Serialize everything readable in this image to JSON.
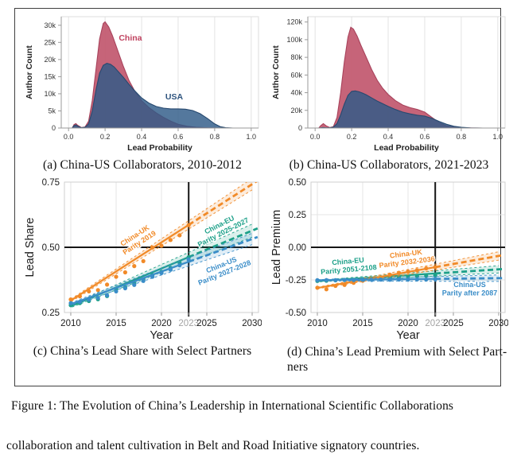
{
  "figure": {
    "caption_line1": "Figure 1: The Evolution of China’s Leadership in International Scientific Collaborations",
    "caption_line2": "collaboration and talent cultivation in Belt and Road Initiative signatory countries."
  },
  "panels": {
    "a_caption": "(a) China-US Collaborators, 2010-2012",
    "b_caption": "(b) China-US Collaborators, 2021-2023",
    "c_caption": "(c) China’s Lead Share with Select Partners",
    "d_caption_line1": "(d) China’s Lead Premium with Select Part-",
    "d_caption_line2": "ners"
  },
  "colors": {
    "china_red": "#c2586f",
    "usa_blue": "#2e5a88",
    "orange": "#f18a28",
    "teal": "#1da089",
    "blue": "#3a8dc8",
    "grid": "#e4e4e4",
    "axis": "#9a9a9a",
    "ref_line": "#151515",
    "tick_text": "#333333",
    "muted_tick": "#a3a3a3"
  },
  "chart_data": [
    {
      "id": "a",
      "type": "density",
      "title": "China-US Collaborators, 2010-2012",
      "xlabel": "Lead Probability",
      "ylabel": "Author Count",
      "xlim": [
        0.0,
        1.0
      ],
      "ymax": 32500,
      "xticks": [
        0,
        0.2,
        0.4,
        0.6,
        0.8,
        1.0
      ],
      "xtick_labels": [
        "0.0",
        "0.2",
        "0.4",
        "0.6",
        "0.8",
        "1.0"
      ],
      "yticks": [
        0,
        5000,
        10000,
        15000,
        20000,
        25000,
        30000
      ],
      "ytick_labels": [
        "0",
        "5k",
        "10k",
        "15k",
        "20k",
        "25k",
        "30k"
      ],
      "series": [
        {
          "name": "China",
          "color": "#c2586f",
          "stroke": "#a8435c",
          "opacity": 0.93,
          "label": "China",
          "label_color": "#c0425f",
          "label_pos": [
            0.275,
            25500
          ],
          "points": [
            [
              0.02,
              0
            ],
            [
              0.03,
              1000
            ],
            [
              0.04,
              1300
            ],
            [
              0.05,
              800
            ],
            [
              0.07,
              150
            ],
            [
              0.09,
              300
            ],
            [
              0.11,
              2000
            ],
            [
              0.13,
              8000
            ],
            [
              0.15,
              17000
            ],
            [
              0.17,
              26000
            ],
            [
              0.19,
              30500
            ],
            [
              0.2,
              31000
            ],
            [
              0.22,
              29500
            ],
            [
              0.24,
              27000
            ],
            [
              0.26,
              24000
            ],
            [
              0.28,
              21000
            ],
            [
              0.3,
              18000
            ],
            [
              0.33,
              14000
            ],
            [
              0.36,
              11000
            ],
            [
              0.4,
              8000
            ],
            [
              0.44,
              6000
            ],
            [
              0.48,
              4400
            ],
            [
              0.52,
              3100
            ],
            [
              0.56,
              2000
            ],
            [
              0.6,
              1100
            ],
            [
              0.65,
              500
            ],
            [
              0.7,
              200
            ],
            [
              0.76,
              70
            ],
            [
              0.82,
              20
            ],
            [
              0.9,
              0
            ],
            [
              0.97,
              0
            ]
          ]
        },
        {
          "name": "USA",
          "color": "#2e5a88",
          "stroke": "#27496f",
          "opacity": 0.82,
          "label": "USA",
          "label_color": "#2e547e",
          "label_pos": [
            0.53,
            8300
          ],
          "points": [
            [
              0.02,
              0
            ],
            [
              0.03,
              700
            ],
            [
              0.04,
              900
            ],
            [
              0.05,
              550
            ],
            [
              0.07,
              100
            ],
            [
              0.09,
              200
            ],
            [
              0.11,
              1200
            ],
            [
              0.13,
              5000
            ],
            [
              0.15,
              11000
            ],
            [
              0.17,
              16000
            ],
            [
              0.19,
              18300
            ],
            [
              0.21,
              18900
            ],
            [
              0.23,
              18600
            ],
            [
              0.25,
              17800
            ],
            [
              0.27,
              16600
            ],
            [
              0.3,
              14800
            ],
            [
              0.33,
              12800
            ],
            [
              0.36,
              11000
            ],
            [
              0.4,
              8800
            ],
            [
              0.44,
              7300
            ],
            [
              0.48,
              6300
            ],
            [
              0.52,
              5800
            ],
            [
              0.56,
              5600
            ],
            [
              0.6,
              5600
            ],
            [
              0.64,
              5500
            ],
            [
              0.68,
              5100
            ],
            [
              0.72,
              4200
            ],
            [
              0.76,
              2800
            ],
            [
              0.8,
              1200
            ],
            [
              0.83,
              400
            ],
            [
              0.86,
              100
            ],
            [
              0.9,
              0
            ],
            [
              0.97,
              0
            ]
          ]
        }
      ]
    },
    {
      "id": "b",
      "type": "density",
      "title": "China-US Collaborators, 2021-2023",
      "xlabel": "Lead Probability",
      "ylabel": "Author Count",
      "xlim": [
        0.0,
        1.0
      ],
      "ymax": 126000,
      "xticks": [
        0,
        0.2,
        0.4,
        0.6,
        0.8,
        1.0
      ],
      "xtick_labels": [
        "0.0",
        "0.2",
        "0.4",
        "0.6",
        "0.8",
        "1.0"
      ],
      "yticks": [
        0,
        20000,
        40000,
        60000,
        80000,
        100000,
        120000
      ],
      "ytick_labels": [
        "0",
        "20k",
        "40k",
        "60k",
        "80k",
        "100k",
        "120k"
      ],
      "series": [
        {
          "name": "China",
          "color": "#c2586f",
          "stroke": "#a8435c",
          "opacity": 0.93,
          "label": null,
          "label_color": "#c0425f",
          "label_pos": null,
          "points": [
            [
              0.02,
              0
            ],
            [
              0.03,
              2500
            ],
            [
              0.045,
              5000
            ],
            [
              0.06,
              2500
            ],
            [
              0.08,
              500
            ],
            [
              0.1,
              1500
            ],
            [
              0.12,
              12000
            ],
            [
              0.14,
              40000
            ],
            [
              0.16,
              75000
            ],
            [
              0.18,
              103000
            ],
            [
              0.195,
              114000
            ],
            [
              0.21,
              112000
            ],
            [
              0.23,
              104000
            ],
            [
              0.25,
              94000
            ],
            [
              0.28,
              80000
            ],
            [
              0.31,
              66000
            ],
            [
              0.34,
              54000
            ],
            [
              0.37,
              45000
            ],
            [
              0.4,
              38000
            ],
            [
              0.44,
              31000
            ],
            [
              0.48,
              26000
            ],
            [
              0.52,
              23000
            ],
            [
              0.56,
              21000
            ],
            [
              0.6,
              18000
            ],
            [
              0.64,
              12000
            ],
            [
              0.68,
              6000
            ],
            [
              0.72,
              2500
            ],
            [
              0.76,
              1000
            ],
            [
              0.8,
              400
            ],
            [
              0.86,
              100
            ],
            [
              0.92,
              0
            ],
            [
              0.97,
              0
            ]
          ]
        },
        {
          "name": "USA",
          "color": "#2e5a88",
          "stroke": "#27496f",
          "opacity": 0.82,
          "label": null,
          "label_color": "#2e547e",
          "label_pos": null,
          "points": [
            [
              0.02,
              0
            ],
            [
              0.04,
              500
            ],
            [
              0.06,
              300
            ],
            [
              0.08,
              300
            ],
            [
              0.1,
              1000
            ],
            [
              0.12,
              5000
            ],
            [
              0.14,
              15000
            ],
            [
              0.16,
              27000
            ],
            [
              0.18,
              37000
            ],
            [
              0.2,
              41500
            ],
            [
              0.22,
              42000
            ],
            [
              0.24,
              41000
            ],
            [
              0.26,
              39500
            ],
            [
              0.28,
              37500
            ],
            [
              0.31,
              34000
            ],
            [
              0.34,
              30500
            ],
            [
              0.37,
              27500
            ],
            [
              0.4,
              24500
            ],
            [
              0.44,
              21000
            ],
            [
              0.48,
              18000
            ],
            [
              0.52,
              16000
            ],
            [
              0.56,
              14500
            ],
            [
              0.6,
              13500
            ],
            [
              0.64,
              11000
            ],
            [
              0.68,
              7500
            ],
            [
              0.72,
              4200
            ],
            [
              0.76,
              2000
            ],
            [
              0.8,
              800
            ],
            [
              0.85,
              200
            ],
            [
              0.92,
              0
            ],
            [
              0.97,
              0
            ]
          ]
        }
      ]
    },
    {
      "id": "c",
      "type": "scatter",
      "title": "China’s Lead Share with Select Partners",
      "xlabel": "Year",
      "ylabel": "Lead Share",
      "xlim": [
        2009.3,
        2030.7
      ],
      "ylim": [
        0.25,
        0.75
      ],
      "xticks": [
        {
          "v": 2010,
          "label": "2010"
        },
        {
          "v": 2015,
          "label": "2015"
        },
        {
          "v": 2020,
          "label": "2020"
        },
        {
          "v": 2023,
          "label": "2023",
          "muted": true
        },
        {
          "v": 2025,
          "label": "2025"
        },
        {
          "v": 2030,
          "label": "2030"
        }
      ],
      "yticks": [
        0.25,
        0.5,
        0.75
      ],
      "ytick_labels": [
        "0.25",
        "0.50",
        "0.75"
      ],
      "hline": 0.5,
      "vline": 2023,
      "years": [
        2010,
        2011,
        2012,
        2013,
        2014,
        2015,
        2016,
        2017,
        2018,
        2019,
        2020,
        2021,
        2022,
        2023
      ],
      "series": [
        {
          "name": "China-UK",
          "color": "#f18a28",
          "values": [
            0.3,
            0.312,
            0.331,
            0.336,
            0.357,
            0.387,
            0.404,
            0.428,
            0.447,
            0.499,
            0.506,
            0.528,
            0.546,
            0.585
          ],
          "fit": {
            "b0": 0.296,
            "m": 0.0223
          },
          "band": [
            0.005,
            0.022
          ],
          "annotation": [
            "China-UK",
            "Parity 2019"
          ],
          "ann": {
            "x": 2017.2,
            "y": 0.537,
            "rot": -33
          }
        },
        {
          "name": "China-EU",
          "color": "#1da089",
          "values": [
            0.278,
            0.286,
            0.294,
            0.301,
            0.313,
            0.339,
            0.346,
            0.361,
            0.376,
            0.394,
            0.406,
            0.421,
            0.441,
            0.462
          ],
          "fit": {
            "b0": 0.274,
            "m": 0.0145
          },
          "band": [
            0.005,
            0.025
          ],
          "annotation": [
            "China-EU",
            "Parity 2025-2027"
          ],
          "ann": {
            "x": 2026.5,
            "y": 0.578,
            "rot": -27
          }
        },
        {
          "name": "China-US",
          "color": "#3a8dc8",
          "values": [
            0.286,
            0.291,
            0.299,
            0.306,
            0.316,
            0.331,
            0.343,
            0.356,
            0.371,
            0.387,
            0.401,
            0.414,
            0.431,
            0.452
          ],
          "fit": {
            "b0": 0.282,
            "m": 0.0125
          },
          "band": [
            0.005,
            0.022
          ],
          "annotation": [
            "China-US",
            "Parity 2027-2028"
          ],
          "ann": {
            "x": 2026.7,
            "y": 0.424,
            "rot": -22
          }
        }
      ]
    },
    {
      "id": "d",
      "type": "scatter",
      "title": "China’s Lead Premium with Select Partners",
      "xlabel": "Year",
      "ylabel": "Lead Premium",
      "xlim": [
        2009.3,
        2030.7
      ],
      "ylim": [
        -0.5,
        0.5
      ],
      "xticks": [
        {
          "v": 2010,
          "label": "2010"
        },
        {
          "v": 2015,
          "label": "2015"
        },
        {
          "v": 2020,
          "label": "2020"
        },
        {
          "v": 2023,
          "label": "2023",
          "muted": true
        },
        {
          "v": 2025,
          "label": "2025"
        },
        {
          "v": 2030,
          "label": "2030"
        }
      ],
      "yticks": [
        -0.5,
        -0.25,
        0,
        0.25,
        0.5
      ],
      "ytick_labels": [
        "-0.50",
        "-0.25",
        "0.00",
        "0.25",
        "0.50"
      ],
      "hline": 0,
      "vline": 2023,
      "years": [
        2010,
        2011,
        2012,
        2013,
        2014,
        2015,
        2016,
        2017,
        2018,
        2019,
        2020,
        2021,
        2022,
        2023
      ],
      "series": [
        {
          "name": "China-EU",
          "color": "#1da089",
          "values": [
            -0.258,
            -0.256,
            -0.253,
            -0.251,
            -0.249,
            -0.246,
            -0.241,
            -0.238,
            -0.233,
            -0.229,
            -0.226,
            -0.223,
            -0.219,
            -0.215
          ],
          "fit": {
            "b0": -0.259,
            "m": 0.0045
          },
          "band": [
            0.006,
            0.028
          ],
          "annotation": [
            "China-EU",
            "Parity 2051-2108"
          ],
          "ann": {
            "x": 2013.4,
            "y": -0.125,
            "rot": -5
          }
        },
        {
          "name": "China-UK",
          "color": "#f18a28",
          "values": [
            -0.31,
            -0.322,
            -0.296,
            -0.288,
            -0.272,
            -0.256,
            -0.246,
            -0.232,
            -0.21,
            -0.196,
            -0.186,
            -0.176,
            -0.162,
            -0.152
          ],
          "fit": {
            "b0": -0.312,
            "m": 0.0123
          },
          "band": [
            0.006,
            0.032
          ],
          "annotation": [
            "China-UK",
            "Parity 2032-2036"
          ],
          "ann": {
            "x": 2019.8,
            "y": -0.068,
            "rot": -7
          }
        },
        {
          "name": "China-US",
          "color": "#3a8dc8",
          "values": [
            -0.252,
            -0.251,
            -0.252,
            -0.25,
            -0.251,
            -0.249,
            -0.25,
            -0.248,
            -0.249,
            -0.247,
            -0.248,
            -0.246,
            -0.247,
            -0.243
          ],
          "fit": {
            "b0": -0.2525,
            "m": 0.0008
          },
          "band": [
            0.005,
            0.025
          ],
          "annotation": [
            "China-US",
            "Parity after 2087"
          ],
          "ann": {
            "x": 2026.8,
            "y": -0.305,
            "rot": 0
          }
        }
      ]
    }
  ]
}
